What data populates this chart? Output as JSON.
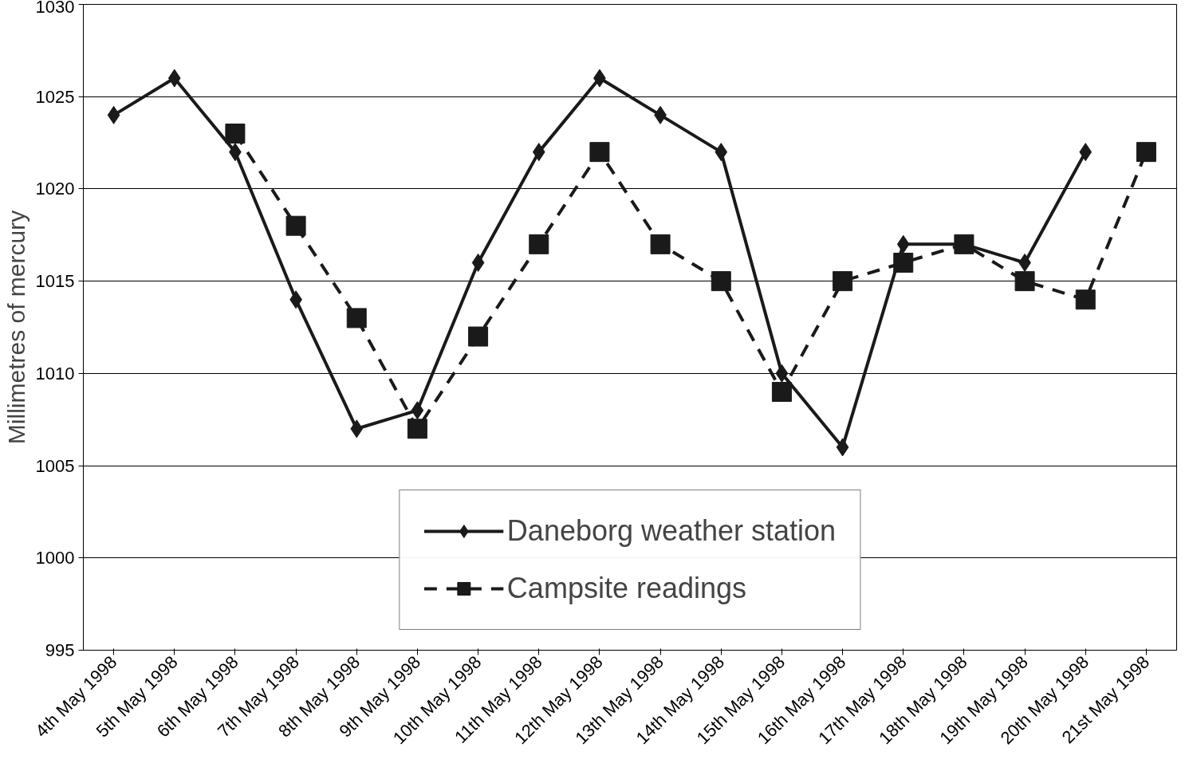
{
  "chart_data": {
    "type": "line",
    "ylabel": "Millimetres of mercury",
    "categories": [
      "4th May 1998",
      "5th May 1998",
      "6th May 1998",
      "7th May 1998",
      "8th May 1998",
      "9th May 1998",
      "10th May 1998",
      "11th May 1998",
      "12th May 1998",
      "13th May 1998",
      "14th May 1998",
      "15th May 1998",
      "16th May 1998",
      "17th May 1998",
      "18th May 1998",
      "19th May 1998",
      "20th May 1998",
      "21st May 1998"
    ],
    "series": [
      {
        "name": "Daneborg weather station",
        "color": "#1a1a1a",
        "marker": "diamond",
        "line_style": "solid",
        "values": [
          1024,
          1026,
          1022,
          1014,
          1007,
          1008,
          1016,
          1022,
          1026,
          1024,
          1022,
          1010,
          1006,
          1017,
          1017,
          1016,
          1022,
          null
        ]
      },
      {
        "name": "Campsite readings",
        "color": "#1a1a1a",
        "marker": "square",
        "line_style": "dashed",
        "values": [
          null,
          null,
          1023,
          1018,
          1013,
          1007,
          1012,
          1017,
          1022,
          1017,
          1015,
          1009,
          1015,
          1016,
          1017,
          1015,
          1014,
          1022
        ]
      }
    ],
    "ylim": [
      995,
      1030
    ],
    "yticks": [
      995,
      1000,
      1005,
      1010,
      1015,
      1020,
      1025,
      1030
    ],
    "grid": "y",
    "legend": "bottom"
  }
}
